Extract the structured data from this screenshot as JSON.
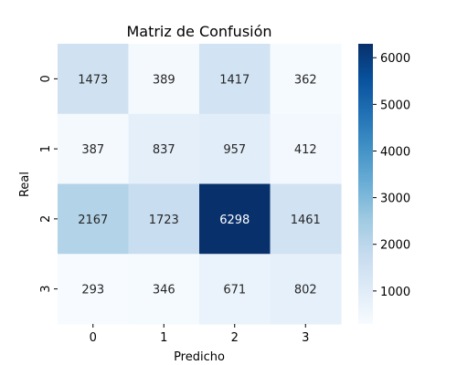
{
  "chart_data": {
    "type": "heatmap",
    "title": "Matriz de Confusión",
    "xlabel": "Predicho",
    "ylabel": "Real",
    "x_categories": [
      "0",
      "1",
      "2",
      "3"
    ],
    "y_categories": [
      "0",
      "1",
      "2",
      "3"
    ],
    "values": [
      [
        1473,
        389,
        1417,
        362
      ],
      [
        387,
        837,
        957,
        412
      ],
      [
        2167,
        1723,
        6298,
        1461
      ],
      [
        293,
        346,
        671,
        802
      ]
    ],
    "value_labels": [
      [
        "1473",
        "389",
        "1417",
        "362"
      ],
      [
        "387",
        "837",
        "957",
        "412"
      ],
      [
        "2167",
        "1723",
        "6298",
        "1461"
      ],
      [
        "293",
        "346",
        "671",
        "802"
      ]
    ],
    "colormap": "Blues",
    "color_range": [
      293,
      6298
    ],
    "colorbar_ticks": [
      1000,
      2000,
      3000,
      4000,
      5000,
      6000
    ],
    "colorbar_tick_labels": [
      "1000",
      "2000",
      "3000",
      "4000",
      "5000",
      "6000"
    ],
    "grid": false,
    "legend": "colorbar-right"
  }
}
